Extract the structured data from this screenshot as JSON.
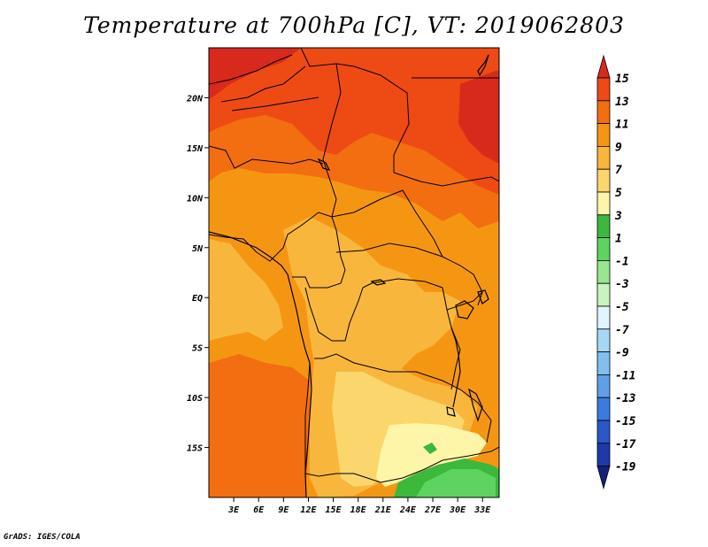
{
  "title": "Temperature at 700hPa [C], VT: 2019062803",
  "footer": "GrADS: IGES/COLA",
  "map": {
    "lon_range": [
      0,
      35
    ],
    "lat_range": [
      -20,
      25
    ],
    "lon_ticks": [
      {
        "value": 3,
        "label": "3E"
      },
      {
        "value": 6,
        "label": "6E"
      },
      {
        "value": 9,
        "label": "9E"
      },
      {
        "value": 12,
        "label": "12E"
      },
      {
        "value": 15,
        "label": "15E"
      },
      {
        "value": 18,
        "label": "18E"
      },
      {
        "value": 21,
        "label": "21E"
      },
      {
        "value": 24,
        "label": "24E"
      },
      {
        "value": 27,
        "label": "27E"
      },
      {
        "value": 30,
        "label": "30E"
      },
      {
        "value": 33,
        "label": "33E"
      }
    ],
    "lat_ticks": [
      {
        "value": 20,
        "label": "20N"
      },
      {
        "value": 15,
        "label": "15N"
      },
      {
        "value": 10,
        "label": "10N"
      },
      {
        "value": 5,
        "label": "5N"
      },
      {
        "value": 0,
        "label": "EQ"
      },
      {
        "value": -5,
        "label": "5S"
      },
      {
        "value": -10,
        "label": "10S"
      },
      {
        "value": -15,
        "label": "15S"
      }
    ]
  },
  "colorbar": {
    "levels": [
      "15",
      "13",
      "11",
      "9",
      "7",
      "5",
      "3",
      "1",
      "-1",
      "-3",
      "-5",
      "-7",
      "-9",
      "-11",
      "-13",
      "-15",
      "-17",
      "-19"
    ],
    "colors": [
      "#d82a1c",
      "#ee4a14",
      "#f26e10",
      "#f59613",
      "#f9b63c",
      "#fad66d",
      "#fdf5a8",
      "#3cb83c",
      "#5fd35f",
      "#99e68f",
      "#c8f5bf",
      "#e0f5ff",
      "#a6d8f5",
      "#80bfef",
      "#5ea0e6",
      "#3a7cdc",
      "#2a58c8",
      "#1e3aa8",
      "#14207a"
    ]
  },
  "temperature_colors": {
    "t15": "#d82a1c",
    "t13": "#ee4a14",
    "t11": "#f26e10",
    "t9": "#f59613",
    "t7": "#f9b63c",
    "t5": "#fad66d",
    "t3": "#fdf5a8",
    "t1": "#3cb83c",
    "tm1": "#5fd35f"
  }
}
